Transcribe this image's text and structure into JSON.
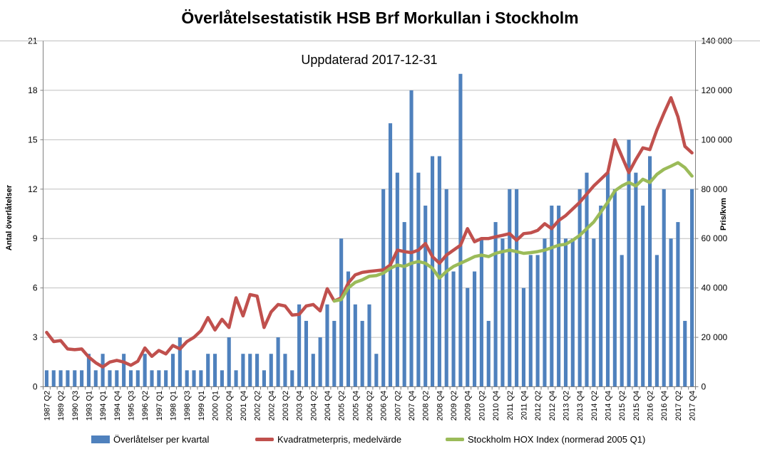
{
  "header": {
    "title": "Överlåtelsestatistik HSB Brf Morkullan i Stockholm",
    "subtitle": "Uppdaterad 2017-12-31"
  },
  "colors": {
    "bar_blue": "#4F81BD",
    "line_red": "#C0504D",
    "line_green": "#9BBB59",
    "gridline": "#BFBFBF",
    "axis": "#808080"
  },
  "legend": {
    "items": [
      {
        "label": "Överlåtelser per kvartal",
        "marker": "bar-swatch",
        "color": "#4F81BD"
      },
      {
        "label": "Kvadratmeterpris, medelvärde",
        "marker": "line-swatch",
        "color": "#C0504D"
      },
      {
        "label": "Stockholm HOX Index (normerad 2005 Q1)",
        "marker": "line-swatch",
        "color": "#9BBB59"
      }
    ]
  },
  "chart_data": {
    "type": "bar",
    "subtype": "combo-bar-line-dual-axis",
    "title": "Överlåtelsestatistik HSB Brf Morkullan i Stockholm",
    "annotation": "Uppdaterad 2017-12-31",
    "xlabel": "",
    "ylabel_left": "Antal överlåtelser",
    "ylabel_right": "Pris/kvm",
    "ylim_left": [
      0,
      21
    ],
    "yticks_left": [
      "0",
      "3",
      "6",
      "9",
      "12",
      "15",
      "18",
      "21"
    ],
    "ylim_right": [
      0,
      140000
    ],
    "yticks_right": [
      "0",
      "20 000",
      "40 000",
      "60 000",
      "80 000",
      "100 000",
      "120 000",
      "140 000"
    ],
    "grid": "horizontal-only",
    "legend_position": "bottom",
    "n_categories": 93,
    "x_label_every": 2,
    "x_labels": [
      "1987 Q2",
      "1989 Q2",
      "1990 Q3",
      "1993 Q1",
      "1994 Q1",
      "1994 Q4",
      "1995 Q3",
      "1996 Q2",
      "1997 Q1",
      "1998 Q1",
      "1998 Q3",
      "1999 Q1",
      "2000 Q1",
      "2000 Q4",
      "2001 Q4",
      "2002 Q2",
      "2002 Q4",
      "2003 Q2",
      "2003 Q4",
      "2004 Q2",
      "2004 Q4",
      "2005 Q2",
      "2005 Q4",
      "2006 Q2",
      "2006 Q4",
      "2007 Q2",
      "2007 Q4",
      "2008 Q2",
      "2008 Q4",
      "2009 Q2",
      "2009 Q4",
      "2010 Q2",
      "2010 Q4",
      "2011 Q2",
      "2011 Q4",
      "2012 Q2",
      "2012 Q4",
      "2013 Q2",
      "2013 Q4",
      "2014 Q2",
      "2014 Q4",
      "2015 Q2",
      "2015 Q4",
      "2016 Q2",
      "2016 Q4",
      "2017 Q2",
      "2017 Q4"
    ],
    "series": [
      {
        "name": "Överlåtelser per kvartal",
        "type": "bar",
        "axis": "left",
        "color": "#4F81BD",
        "values": [
          1,
          1,
          1,
          1,
          1,
          1,
          2,
          1,
          2,
          1,
          1,
          2,
          1,
          1,
          2,
          1,
          1,
          1,
          2,
          3,
          1,
          1,
          1,
          2,
          2,
          1,
          3,
          1,
          2,
          2,
          2,
          1,
          2,
          3,
          2,
          1,
          5,
          4,
          2,
          3,
          5,
          4,
          9,
          7,
          5,
          4,
          5,
          2,
          12,
          16,
          13,
          10,
          18,
          13,
          11,
          14,
          14,
          12,
          7,
          19,
          6,
          7,
          9,
          4,
          10,
          9,
          12,
          12,
          6,
          8,
          8,
          9,
          11,
          11,
          9,
          9,
          12,
          13,
          9,
          11,
          13,
          12,
          8,
          15,
          13,
          11,
          14,
          8,
          12,
          9,
          10,
          4,
          12
        ]
      },
      {
        "name": "Kvadratmeterpris, medelvärde",
        "type": "line",
        "axis": "right",
        "color": "#C0504D",
        "values": [
          22000,
          18300,
          18700,
          15300,
          15000,
          15300,
          12000,
          9700,
          8000,
          10000,
          10700,
          10000,
          8700,
          10300,
          15700,
          12300,
          14700,
          13300,
          16700,
          15300,
          18300,
          20000,
          22700,
          28000,
          23000,
          27300,
          24000,
          36000,
          28700,
          37300,
          36700,
          24000,
          30300,
          33300,
          32700,
          29000,
          29300,
          32700,
          33300,
          30700,
          39700,
          34700,
          36000,
          42000,
          45300,
          46300,
          46700,
          47000,
          47300,
          49300,
          55300,
          54700,
          54300,
          55300,
          58000,
          52700,
          50000,
          53300,
          55300,
          57300,
          64000,
          58700,
          60000,
          60000,
          60700,
          61300,
          62000,
          59300,
          62000,
          62300,
          63300,
          66000,
          64000,
          67300,
          69300,
          72000,
          74700,
          78000,
          81300,
          84000,
          86700,
          100000,
          93300,
          86700,
          92000,
          96700,
          96000,
          104000,
          110700,
          117000,
          109300,
          97300,
          94700
        ]
      },
      {
        "name": "Stockholm HOX Index (normerad 2005 Q1)",
        "type": "line",
        "axis": "right",
        "color": "#9BBB59",
        "values": [
          null,
          null,
          null,
          null,
          null,
          null,
          null,
          null,
          null,
          null,
          null,
          null,
          null,
          null,
          null,
          null,
          null,
          null,
          null,
          null,
          null,
          null,
          null,
          null,
          null,
          null,
          null,
          null,
          null,
          null,
          null,
          null,
          null,
          null,
          null,
          null,
          null,
          null,
          null,
          null,
          null,
          34700,
          35300,
          40000,
          42300,
          43300,
          44700,
          45000,
          46000,
          48000,
          49300,
          48700,
          50000,
          50700,
          50000,
          48000,
          44000,
          46700,
          48700,
          50000,
          51300,
          52700,
          53300,
          52700,
          54000,
          54700,
          55300,
          54700,
          54000,
          54300,
          54700,
          55300,
          56300,
          57300,
          57700,
          59300,
          61300,
          64000,
          66700,
          70700,
          74700,
          79300,
          81300,
          82700,
          81300,
          84000,
          82700,
          86000,
          88000,
          89300,
          90700,
          88700,
          85300
        ]
      }
    ]
  }
}
